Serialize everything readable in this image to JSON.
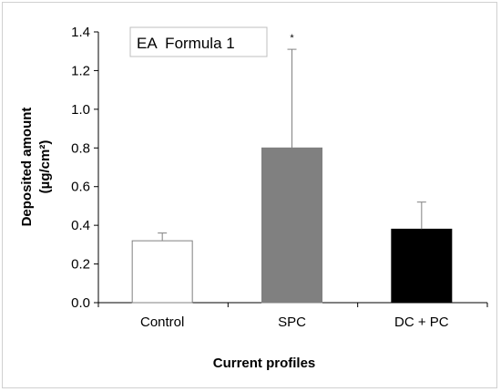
{
  "chart_data": {
    "type": "bar",
    "categories": [
      "Control",
      "SPC",
      "DC + PC"
    ],
    "values": [
      0.32,
      0.8,
      0.38
    ],
    "errors": [
      0.04,
      0.51,
      0.14
    ],
    "bar_colors": [
      "#ffffff",
      "#808080",
      "#000000"
    ],
    "significance": [
      "",
      "*",
      ""
    ],
    "title": "EA  Formula 1",
    "xlabel": "Current profiles",
    "ylabel_line1": "Deposited amount",
    "ylabel_line2": "(µg/cm²)",
    "ylim": [
      0,
      1.4
    ],
    "yticks": [
      "0.0",
      "0.2",
      "0.4",
      "0.6",
      "0.8",
      "1.0",
      "1.2",
      "1.4"
    ],
    "grid": false,
    "legend_position": "top-left"
  }
}
